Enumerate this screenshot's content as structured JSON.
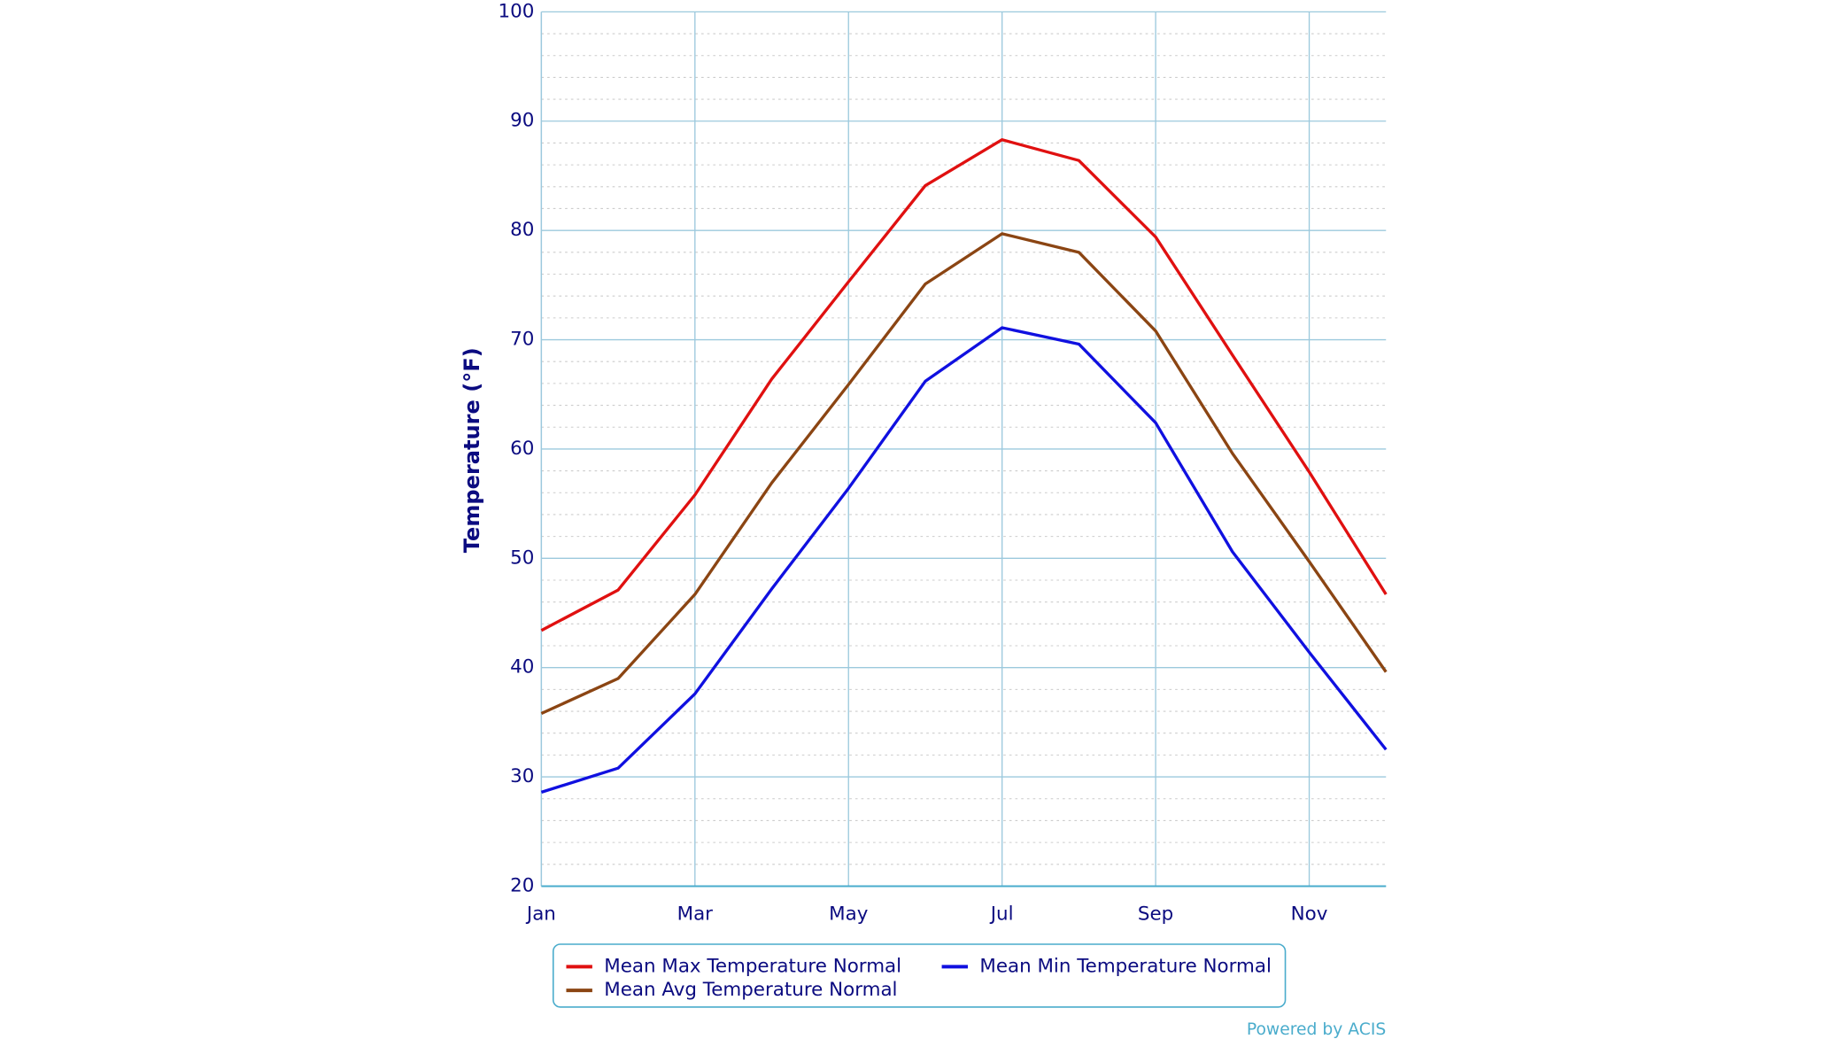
{
  "chart_data": {
    "type": "line",
    "y_label": "Temperature (°F)",
    "categories": [
      "Jan",
      null,
      "Mar",
      null,
      "May",
      null,
      "Jul",
      null,
      "Sep",
      null,
      "Nov",
      null
    ],
    "series": [
      {
        "name": "Mean Max Temperature Normal",
        "color": "#e01010",
        "values": [
          43.4,
          47.1,
          55.8,
          66.4,
          75.3,
          84.1,
          88.3,
          86.4,
          79.4,
          68.6,
          57.9,
          46.7
        ]
      },
      {
        "name": "Mean Min Temperature Normal",
        "color": "#1010e0",
        "values": [
          28.6,
          30.8,
          37.6,
          47.2,
          56.4,
          66.2,
          71.1,
          69.6,
          62.4,
          50.6,
          41.4,
          32.5
        ]
      },
      {
        "name": "Mean Avg Temperature Normal",
        "color": "#8b4513",
        "values": [
          35.8,
          39.0,
          46.7,
          56.9,
          65.9,
          75.1,
          79.7,
          78.0,
          70.8,
          59.6,
          49.7,
          39.6
        ]
      }
    ],
    "ylim": [
      20,
      100
    ],
    "yticks": [
      20,
      30,
      40,
      50,
      60,
      70,
      80,
      90,
      100
    ],
    "grid": true,
    "credit": "Powered by ACIS"
  }
}
